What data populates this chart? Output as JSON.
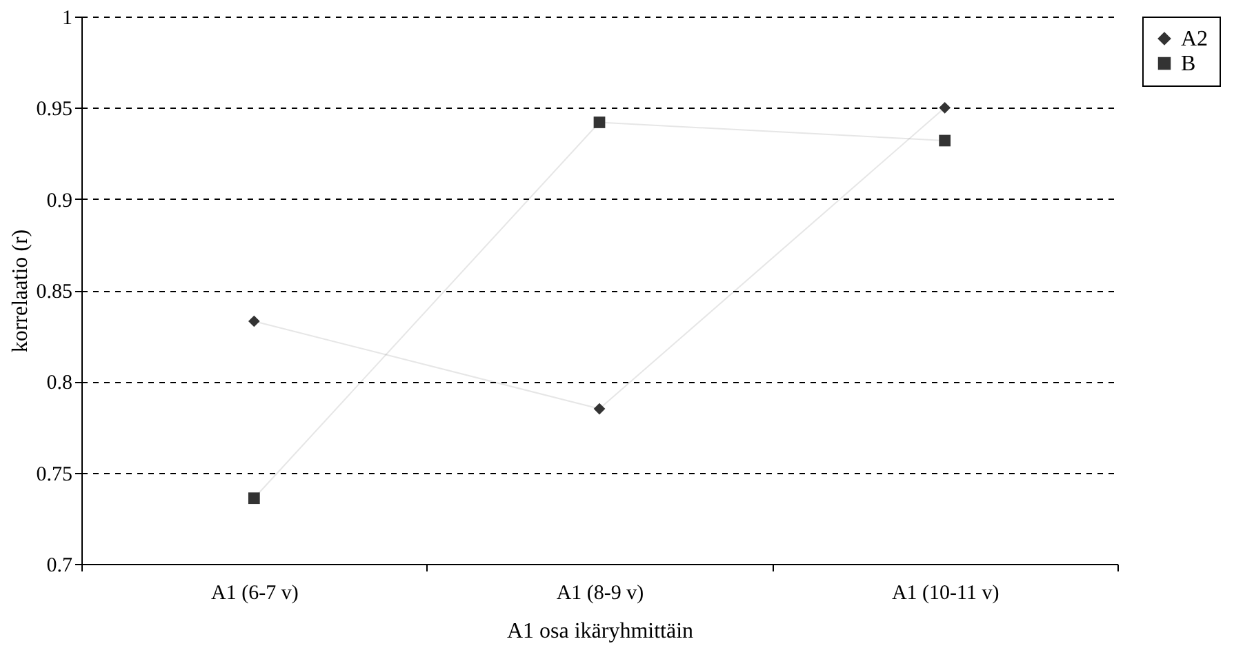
{
  "chart_data": {
    "type": "line",
    "xlabel": "A1 osa ikäryhmittäin",
    "ylabel": "korrelaatio (r)",
    "categories": [
      "A1 (6-7 v)",
      "A1 (8-9 v)",
      "A1 (10-11 v)"
    ],
    "series": [
      {
        "name": "A2",
        "color": "#333333",
        "marker": "diamond",
        "values": [
          0.833,
          0.785,
          0.95
        ]
      },
      {
        "name": "B",
        "color": "#333333",
        "marker": "square",
        "values": [
          0.736,
          0.942,
          0.932
        ]
      }
    ],
    "ylim": [
      0.7,
      1
    ],
    "yticks": [
      0.7,
      0.75,
      0.8,
      0.85,
      0.9,
      0.95,
      1
    ],
    "grid": "y",
    "legend": "right"
  }
}
